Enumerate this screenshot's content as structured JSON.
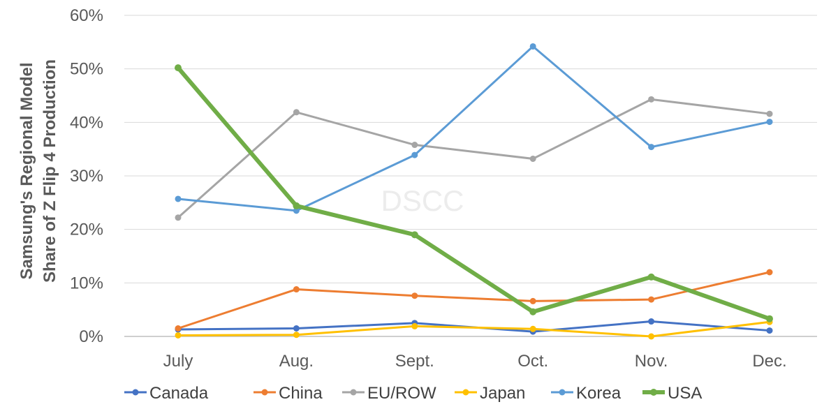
{
  "watermark": "DSCC",
  "chart_data": {
    "type": "line",
    "title": "",
    "ylabel_lines": [
      "Samsung's Regional Model",
      "Share of Z Flip 4 Production"
    ],
    "xlabel": "",
    "categories": [
      "July",
      "Aug.",
      "Sept.",
      "Oct.",
      "Nov.",
      "Dec."
    ],
    "ylim": [
      0,
      60
    ],
    "yticks": [
      0,
      10,
      20,
      30,
      40,
      50,
      60
    ],
    "ytick_labels": [
      "0%",
      "10%",
      "20%",
      "30%",
      "40%",
      "50%",
      "60%"
    ],
    "grid": "horizontal",
    "legend_position": "bottom",
    "series": [
      {
        "name": "Canada",
        "color": "#4472C4",
        "values": [
          1.3,
          1.5,
          2.5,
          0.9,
          2.8,
          1.1
        ]
      },
      {
        "name": "China",
        "color": "#ED7D31",
        "values": [
          1.5,
          8.8,
          7.6,
          6.6,
          6.9,
          12.0
        ]
      },
      {
        "name": "EU/ROW",
        "color": "#A5A5A5",
        "values": [
          22.2,
          41.9,
          35.8,
          33.2,
          44.3,
          41.6
        ]
      },
      {
        "name": "Japan",
        "color": "#FFC000",
        "values": [
          0.2,
          0.3,
          1.9,
          1.4,
          0.0,
          2.7
        ]
      },
      {
        "name": "Korea",
        "color": "#5B9BD5",
        "values": [
          25.7,
          23.5,
          33.9,
          54.2,
          35.4,
          40.1
        ]
      },
      {
        "name": "USA",
        "color": "#70AD47",
        "values": [
          50.2,
          24.4,
          19.0,
          4.6,
          11.1,
          3.3
        ],
        "thick": true
      }
    ]
  }
}
